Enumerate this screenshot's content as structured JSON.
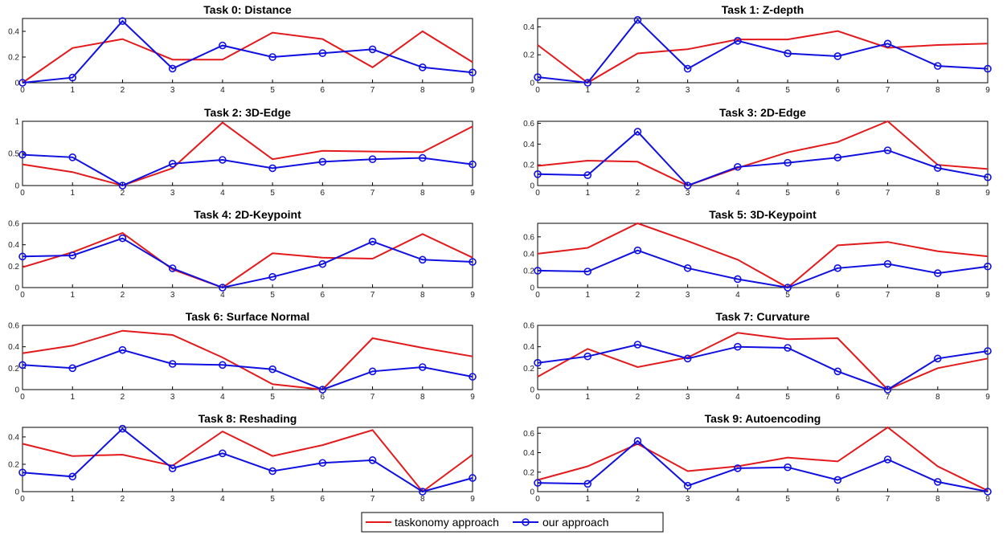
{
  "legend": {
    "items": [
      {
        "label": "taskonomy approach",
        "color": "#e31a1c",
        "marker": "none"
      },
      {
        "label": "our approach",
        "color": "#1010e0",
        "marker": "circle"
      }
    ]
  },
  "chart_data": [
    {
      "type": "line",
      "title": "Task 0: Distance",
      "x": [
        0,
        1,
        2,
        3,
        4,
        5,
        6,
        7,
        8,
        9
      ],
      "xlim": [
        0,
        9
      ],
      "ylim": [
        0,
        0.5
      ],
      "yticks": [
        0,
        0.2,
        0.4
      ],
      "series": [
        {
          "name": "taskonomy approach",
          "color": "#e31a1c",
          "values": [
            0.0,
            0.27,
            0.34,
            0.18,
            0.18,
            0.39,
            0.34,
            0.12,
            0.4,
            0.16
          ]
        },
        {
          "name": "our approach",
          "color": "#1010e0",
          "values": [
            0.0,
            0.04,
            0.48,
            0.11,
            0.29,
            0.2,
            0.23,
            0.26,
            0.12,
            0.08
          ]
        }
      ]
    },
    {
      "type": "line",
      "title": "Task 1: Z-depth",
      "x": [
        0,
        1,
        2,
        3,
        4,
        5,
        6,
        7,
        8,
        9
      ],
      "xlim": [
        0,
        9
      ],
      "ylim": [
        0,
        0.46
      ],
      "yticks": [
        0,
        0.2,
        0.4
      ],
      "series": [
        {
          "name": "taskonomy approach",
          "color": "#e31a1c",
          "values": [
            0.27,
            0.0,
            0.21,
            0.24,
            0.31,
            0.31,
            0.37,
            0.25,
            0.27,
            0.28
          ]
        },
        {
          "name": "our approach",
          "color": "#1010e0",
          "values": [
            0.04,
            0.0,
            0.45,
            0.1,
            0.3,
            0.21,
            0.19,
            0.28,
            0.12,
            0.1
          ]
        }
      ]
    },
    {
      "type": "line",
      "title": "Task 2: 3D-Edge",
      "x": [
        0,
        1,
        2,
        3,
        4,
        5,
        6,
        7,
        8,
        9
      ],
      "xlim": [
        0,
        9
      ],
      "ylim": [
        0,
        1
      ],
      "yticks": [
        0,
        0.5,
        1
      ],
      "series": [
        {
          "name": "taskonomy approach",
          "color": "#e31a1c",
          "values": [
            0.33,
            0.21,
            0.0,
            0.27,
            0.98,
            0.41,
            0.54,
            0.53,
            0.52,
            0.92
          ]
        },
        {
          "name": "our approach",
          "color": "#1010e0",
          "values": [
            0.48,
            0.44,
            0.0,
            0.34,
            0.4,
            0.27,
            0.37,
            0.41,
            0.43,
            0.33
          ]
        }
      ]
    },
    {
      "type": "line",
      "title": "Task 3: 2D-Edge",
      "x": [
        0,
        1,
        2,
        3,
        4,
        5,
        6,
        7,
        8,
        9
      ],
      "xlim": [
        0,
        9
      ],
      "ylim": [
        0,
        0.62
      ],
      "yticks": [
        0,
        0.2,
        0.4,
        0.6
      ],
      "series": [
        {
          "name": "taskonomy approach",
          "color": "#e31a1c",
          "values": [
            0.19,
            0.24,
            0.23,
            0.0,
            0.17,
            0.32,
            0.42,
            0.62,
            0.2,
            0.16
          ]
        },
        {
          "name": "our approach",
          "color": "#1010e0",
          "values": [
            0.11,
            0.1,
            0.52,
            0.0,
            0.18,
            0.22,
            0.27,
            0.34,
            0.17,
            0.08
          ]
        }
      ]
    },
    {
      "type": "line",
      "title": "Task 4: 2D-Keypoint",
      "x": [
        0,
        1,
        2,
        3,
        4,
        5,
        6,
        7,
        8,
        9
      ],
      "xlim": [
        0,
        9
      ],
      "ylim": [
        0,
        0.6
      ],
      "yticks": [
        0,
        0.2,
        0.4,
        0.6
      ],
      "series": [
        {
          "name": "taskonomy approach",
          "color": "#e31a1c",
          "values": [
            0.19,
            0.33,
            0.51,
            0.17,
            0.0,
            0.32,
            0.28,
            0.27,
            0.5,
            0.28
          ]
        },
        {
          "name": "our approach",
          "color": "#1010e0",
          "values": [
            0.29,
            0.3,
            0.46,
            0.18,
            0.0,
            0.1,
            0.22,
            0.43,
            0.26,
            0.24
          ]
        }
      ]
    },
    {
      "type": "line",
      "title": "Task 5: 3D-Keypoint",
      "x": [
        0,
        1,
        2,
        3,
        4,
        5,
        6,
        7,
        8,
        9
      ],
      "xlim": [
        0,
        9
      ],
      "ylim": [
        0,
        0.76
      ],
      "yticks": [
        0,
        0.2,
        0.4,
        0.6
      ],
      "series": [
        {
          "name": "taskonomy approach",
          "color": "#e31a1c",
          "values": [
            0.4,
            0.47,
            0.76,
            0.55,
            0.33,
            0.0,
            0.5,
            0.54,
            0.43,
            0.37
          ]
        },
        {
          "name": "our approach",
          "color": "#1010e0",
          "values": [
            0.2,
            0.19,
            0.44,
            0.23,
            0.1,
            0.0,
            0.23,
            0.28,
            0.17,
            0.25
          ]
        }
      ]
    },
    {
      "type": "line",
      "title": "Task 6: Surface Normal",
      "x": [
        0,
        1,
        2,
        3,
        4,
        5,
        6,
        7,
        8,
        9
      ],
      "xlim": [
        0,
        9
      ],
      "ylim": [
        0,
        0.6
      ],
      "yticks": [
        0,
        0.2,
        0.4,
        0.6
      ],
      "series": [
        {
          "name": "taskonomy approach",
          "color": "#e31a1c",
          "values": [
            0.34,
            0.41,
            0.55,
            0.51,
            0.3,
            0.05,
            0.0,
            0.48,
            0.39,
            0.31
          ]
        },
        {
          "name": "our approach",
          "color": "#1010e0",
          "values": [
            0.23,
            0.2,
            0.37,
            0.24,
            0.23,
            0.19,
            0.0,
            0.17,
            0.21,
            0.12
          ]
        }
      ]
    },
    {
      "type": "line",
      "title": "Task 7: Curvature",
      "x": [
        0,
        1,
        2,
        3,
        4,
        5,
        6,
        7,
        8,
        9
      ],
      "xlim": [
        0,
        9
      ],
      "ylim": [
        0,
        0.6
      ],
      "yticks": [
        0,
        0.2,
        0.4,
        0.6
      ],
      "series": [
        {
          "name": "taskonomy approach",
          "color": "#e31a1c",
          "values": [
            0.12,
            0.38,
            0.21,
            0.3,
            0.53,
            0.47,
            0.48,
            0.0,
            0.2,
            0.29
          ]
        },
        {
          "name": "our approach",
          "color": "#1010e0",
          "values": [
            0.25,
            0.31,
            0.42,
            0.29,
            0.4,
            0.39,
            0.17,
            0.0,
            0.29,
            0.36
          ]
        }
      ]
    },
    {
      "type": "line",
      "title": "Task 8: Reshading",
      "x": [
        0,
        1,
        2,
        3,
        4,
        5,
        6,
        7,
        8,
        9
      ],
      "xlim": [
        0,
        9
      ],
      "ylim": [
        0,
        0.47
      ],
      "yticks": [
        0,
        0.2,
        0.4
      ],
      "series": [
        {
          "name": "taskonomy approach",
          "color": "#e31a1c",
          "values": [
            0.35,
            0.26,
            0.27,
            0.19,
            0.44,
            0.26,
            0.34,
            0.45,
            0.0,
            0.27
          ]
        },
        {
          "name": "our approach",
          "color": "#1010e0",
          "values": [
            0.14,
            0.11,
            0.46,
            0.17,
            0.28,
            0.15,
            0.21,
            0.23,
            0.0,
            0.1
          ]
        }
      ]
    },
    {
      "type": "line",
      "title": "Task 9: Autoencoding",
      "x": [
        0,
        1,
        2,
        3,
        4,
        5,
        6,
        7,
        8,
        9
      ],
      "xlim": [
        0,
        9
      ],
      "ylim": [
        0,
        0.66
      ],
      "yticks": [
        0,
        0.2,
        0.4,
        0.6
      ],
      "series": [
        {
          "name": "taskonomy approach",
          "color": "#e31a1c",
          "values": [
            0.12,
            0.26,
            0.49,
            0.21,
            0.26,
            0.35,
            0.31,
            0.66,
            0.26,
            0.01
          ]
        },
        {
          "name": "our approach",
          "color": "#1010e0",
          "values": [
            0.09,
            0.08,
            0.52,
            0.06,
            0.24,
            0.25,
            0.12,
            0.33,
            0.1,
            0.0
          ]
        }
      ]
    }
  ]
}
